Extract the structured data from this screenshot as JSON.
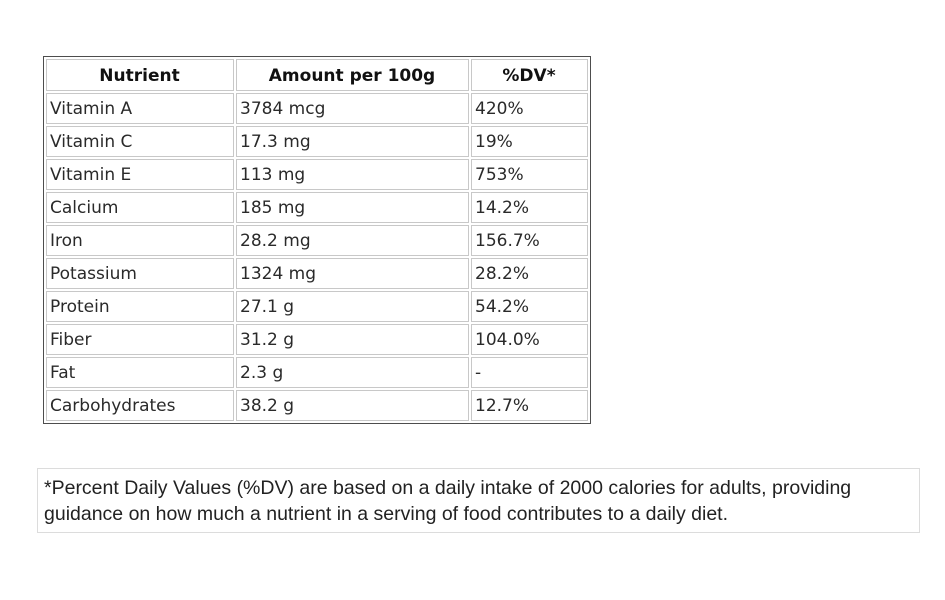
{
  "table": {
    "headers": [
      "Nutrient",
      "Amount per 100g",
      "%DV*"
    ],
    "rows": [
      [
        "Vitamin A",
        "3784 mcg",
        "420%"
      ],
      [
        "Vitamin C",
        "17.3 mg",
        "19%"
      ],
      [
        "Vitamin E",
        "113 mg",
        "753%"
      ],
      [
        "Calcium",
        "185 mg",
        "14.2%"
      ],
      [
        "Iron",
        "28.2 mg",
        "156.7%"
      ],
      [
        "Potassium",
        "1324 mg",
        "28.2%"
      ],
      [
        "Protein",
        "27.1 g",
        "54.2%"
      ],
      [
        "Fiber",
        "31.2 g",
        "104.0%"
      ],
      [
        "Fat",
        "2.3 g",
        "-"
      ],
      [
        "Carbohydrates",
        "38.2 g",
        "12.7%"
      ]
    ]
  },
  "footnote": {
    "text": "*Percent Daily Values (%DV) are based on a daily intake of 2000 calories for adults, providing guidance on how much a nutrient in a serving of food contributes to a daily diet."
  }
}
